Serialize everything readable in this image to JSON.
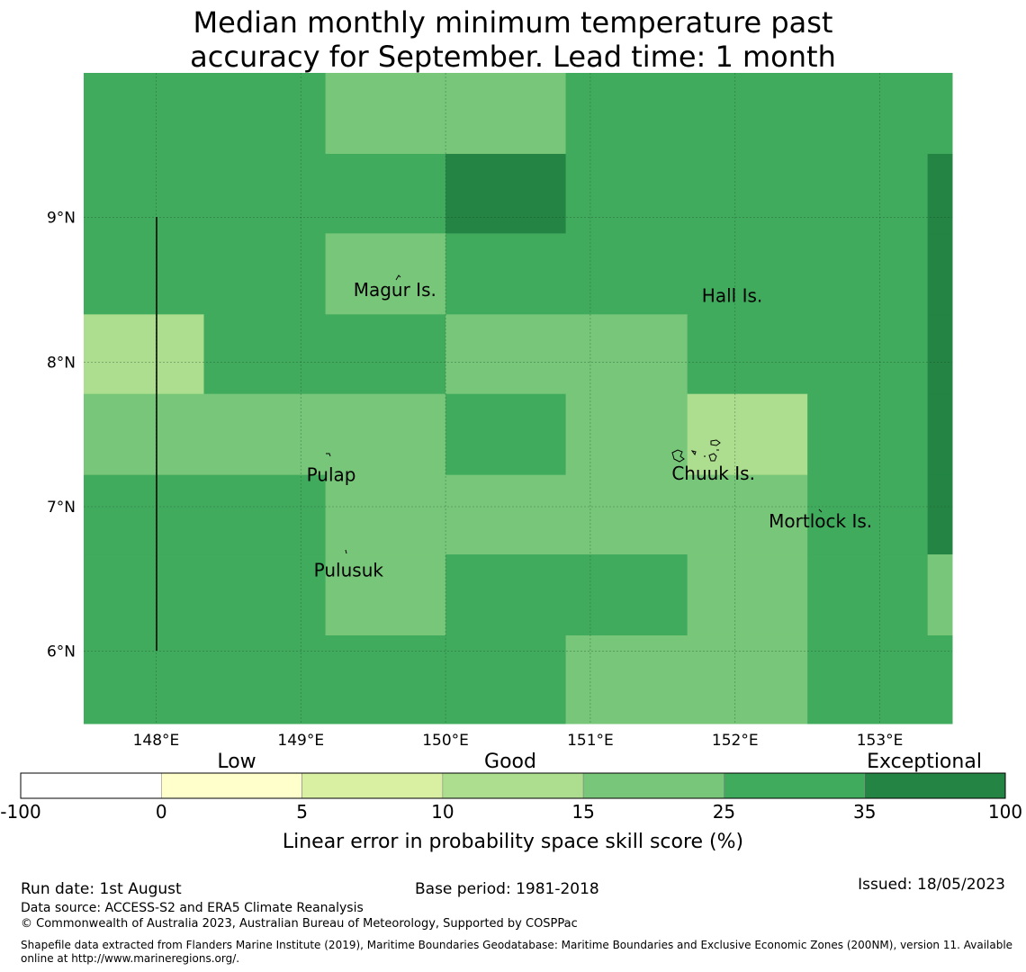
{
  "title_line1": "Median monthly minimum temperature past",
  "title_line2": "accuracy for September. Lead time: 1 month",
  "map": {
    "lon_range": [
      147.5,
      153.5
    ],
    "lat_range": [
      5.5,
      10.0
    ],
    "lon_ticks": [
      {
        "value": 148,
        "label": "148°E"
      },
      {
        "value": 149,
        "label": "149°E"
      },
      {
        "value": 150,
        "label": "150°E"
      },
      {
        "value": 151,
        "label": "151°E"
      },
      {
        "value": 152,
        "label": "152°E"
      },
      {
        "value": 153,
        "label": "153°E"
      }
    ],
    "lat_ticks": [
      {
        "value": 9,
        "label": "9°N"
      },
      {
        "value": 8,
        "label": "8°N"
      },
      {
        "value": 7,
        "label": "7°N"
      },
      {
        "value": 6,
        "label": "6°N"
      }
    ],
    "places": [
      {
        "name": "Magur Is.",
        "lon": 149.65,
        "lat": 8.5
      },
      {
        "name": "Hall Is.",
        "lon": 151.98,
        "lat": 8.46
      },
      {
        "name": "Pulap",
        "lon": 149.21,
        "lat": 7.22
      },
      {
        "name": "Chuuk Is.",
        "lon": 151.85,
        "lat": 7.23
      },
      {
        "name": "Mortlock Is.",
        "lon": 152.59,
        "lat": 6.9
      },
      {
        "name": "Pulusuk",
        "lon": 149.33,
        "lat": 6.56
      }
    ]
  },
  "chart_data": {
    "type": "heatmap",
    "title": "Median monthly minimum temperature past accuracy for September. Lead time: 1 month",
    "xlabel": "",
    "ylabel": "",
    "x_range": [
      147.5,
      153.5
    ],
    "y_range": [
      5.5,
      10.0
    ],
    "grid": true,
    "cells": [
      {
        "lon": [
          147.5,
          149.17
        ],
        "lat": [
          9.44,
          10.0
        ],
        "value": 30
      },
      {
        "lon": [
          149.17,
          150.83
        ],
        "lat": [
          9.44,
          10.0
        ],
        "value": 20
      },
      {
        "lon": [
          150.83,
          153.5
        ],
        "lat": [
          9.44,
          10.0
        ],
        "value": 30
      },
      {
        "lon": [
          147.5,
          150.0
        ],
        "lat": [
          8.89,
          9.44
        ],
        "value": 30
      },
      {
        "lon": [
          150.0,
          150.83
        ],
        "lat": [
          8.89,
          9.44
        ],
        "value": 40
      },
      {
        "lon": [
          150.83,
          153.33
        ],
        "lat": [
          8.89,
          9.44
        ],
        "value": 30
      },
      {
        "lon": [
          153.33,
          153.5
        ],
        "lat": [
          8.89,
          9.44
        ],
        "value": 40
      },
      {
        "lon": [
          147.5,
          149.17
        ],
        "lat": [
          8.33,
          8.89
        ],
        "value": 30
      },
      {
        "lon": [
          149.17,
          150.0
        ],
        "lat": [
          8.33,
          8.89
        ],
        "value": 20
      },
      {
        "lon": [
          150.0,
          153.33
        ],
        "lat": [
          8.33,
          8.89
        ],
        "value": 30
      },
      {
        "lon": [
          153.33,
          153.5
        ],
        "lat": [
          8.33,
          8.89
        ],
        "value": 40
      },
      {
        "lon": [
          147.5,
          148.33
        ],
        "lat": [
          7.78,
          8.33
        ],
        "value": 12
      },
      {
        "lon": [
          148.33,
          150.0
        ],
        "lat": [
          7.78,
          8.33
        ],
        "value": 30
      },
      {
        "lon": [
          150.0,
          151.67
        ],
        "lat": [
          7.78,
          8.33
        ],
        "value": 20
      },
      {
        "lon": [
          151.67,
          153.33
        ],
        "lat": [
          7.78,
          8.33
        ],
        "value": 30
      },
      {
        "lon": [
          153.33,
          153.5
        ],
        "lat": [
          7.78,
          8.33
        ],
        "value": 40
      },
      {
        "lon": [
          147.5,
          150.0
        ],
        "lat": [
          7.22,
          7.78
        ],
        "value": 20
      },
      {
        "lon": [
          150.0,
          150.83
        ],
        "lat": [
          7.22,
          7.78
        ],
        "value": 30
      },
      {
        "lon": [
          150.83,
          151.67
        ],
        "lat": [
          7.22,
          7.78
        ],
        "value": 20
      },
      {
        "lon": [
          151.67,
          152.5
        ],
        "lat": [
          7.22,
          7.78
        ],
        "value": 12
      },
      {
        "lon": [
          152.5,
          153.33
        ],
        "lat": [
          7.22,
          7.78
        ],
        "value": 30
      },
      {
        "lon": [
          153.33,
          153.5
        ],
        "lat": [
          7.22,
          7.78
        ],
        "value": 40
      },
      {
        "lon": [
          147.5,
          149.17
        ],
        "lat": [
          6.67,
          7.22
        ],
        "value": 30
      },
      {
        "lon": [
          149.17,
          152.5
        ],
        "lat": [
          6.67,
          7.22
        ],
        "value": 20
      },
      {
        "lon": [
          152.5,
          153.33
        ],
        "lat": [
          6.67,
          7.22
        ],
        "value": 30
      },
      {
        "lon": [
          153.33,
          153.5
        ],
        "lat": [
          6.67,
          7.22
        ],
        "value": 40
      },
      {
        "lon": [
          147.5,
          149.17
        ],
        "lat": [
          6.11,
          6.67
        ],
        "value": 30
      },
      {
        "lon": [
          149.17,
          150.0
        ],
        "lat": [
          6.11,
          6.67
        ],
        "value": 20
      },
      {
        "lon": [
          150.0,
          151.67
        ],
        "lat": [
          6.11,
          6.67
        ],
        "value": 30
      },
      {
        "lon": [
          151.67,
          152.5
        ],
        "lat": [
          6.11,
          6.67
        ],
        "value": 20
      },
      {
        "lon": [
          152.5,
          153.33
        ],
        "lat": [
          6.11,
          6.67
        ],
        "value": 30
      },
      {
        "lon": [
          153.33,
          153.5
        ],
        "lat": [
          6.11,
          6.67
        ],
        "value": 20
      },
      {
        "lon": [
          147.5,
          150.83
        ],
        "lat": [
          5.5,
          6.11
        ],
        "value": 30
      },
      {
        "lon": [
          150.83,
          152.5
        ],
        "lat": [
          5.5,
          6.11
        ],
        "value": 20
      },
      {
        "lon": [
          152.5,
          153.5
        ],
        "lat": [
          5.5,
          6.11
        ],
        "value": 30
      }
    ]
  },
  "colorbar": {
    "bounds": [
      -100,
      0,
      5,
      10,
      15,
      25,
      35,
      100
    ],
    "tick_labels": [
      "-100",
      "0",
      "5",
      "10",
      "15",
      "25",
      "35",
      "100"
    ],
    "colors": [
      "#ffffff",
      "#ffffcc",
      "#d9f0a3",
      "#addd8e",
      "#78c679",
      "#41ab5d",
      "#238443"
    ],
    "category_labels": {
      "low": "Low",
      "good": "Good",
      "exceptional": "Exceptional"
    },
    "label": "Linear error in probability space skill score (%)"
  },
  "footer": {
    "run_date": "Run date: 1st August",
    "base_period": "Base period: 1981-2018",
    "issued": "Issued: 18/05/2023",
    "data_source": "Data source: ACCESS-S2 and ERA5 Climate Reanalysis",
    "copyright": "© Commonwealth of Australia 2023, Australian Bureau of Meteorology, Supported by COSPPac",
    "shapefile_line1": "Shapefile data extracted from Flanders Marine Institute (2019), Maritime Boundaries Geodatabase: Maritime Boundaries and Exclusive Economic Zones (200NM), version 11. Available",
    "shapefile_line2": "online at http://www.marineregions.org/."
  }
}
